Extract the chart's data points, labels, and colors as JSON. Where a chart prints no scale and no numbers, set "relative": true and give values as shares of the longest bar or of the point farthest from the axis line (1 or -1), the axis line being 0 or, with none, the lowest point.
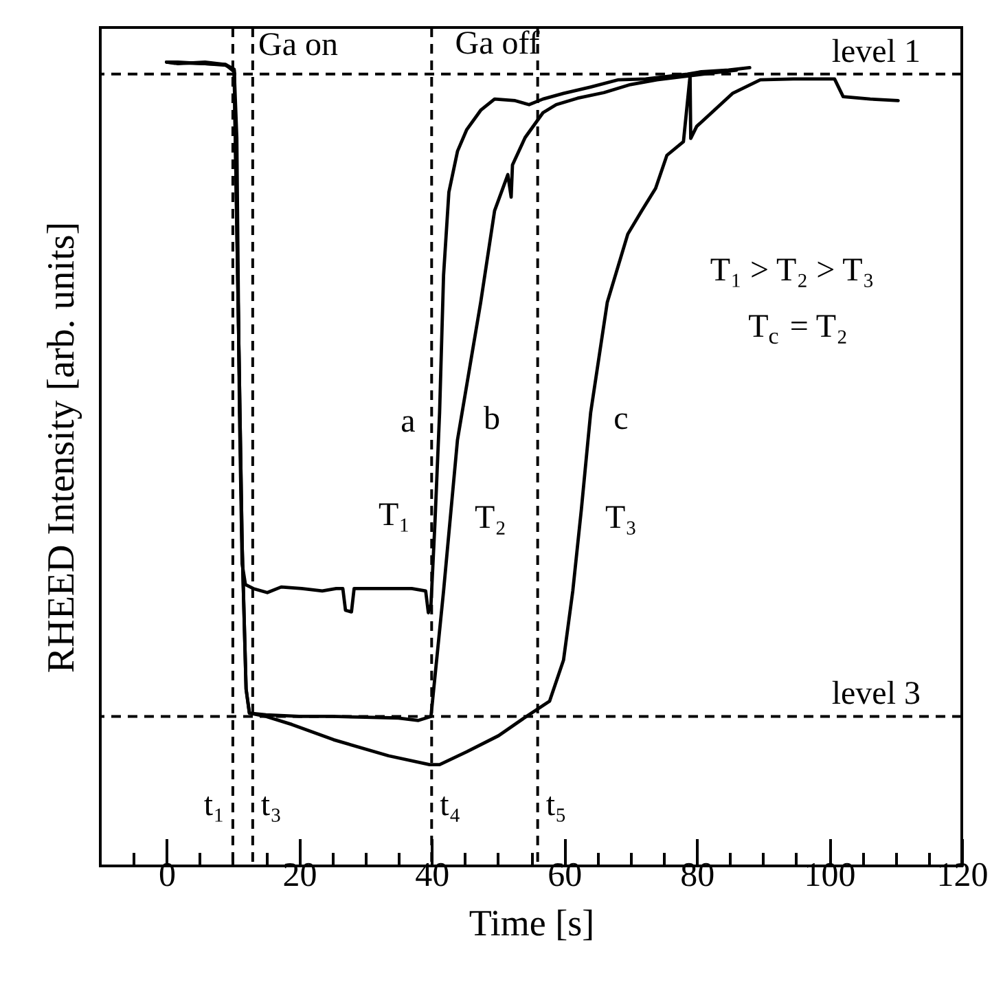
{
  "chart_data": {
    "type": "line",
    "relative": true,
    "xlabel": "Time [s]",
    "ylabel": "RHEED Intensity [arb. units]",
    "xlim": [
      -10,
      120
    ],
    "xticks": [
      {
        "value": -5,
        "label": null
      },
      0,
      {
        "value": 5,
        "label": null
      },
      {
        "value": 10,
        "label": null
      },
      {
        "value": 15,
        "label": null
      },
      20,
      {
        "value": 25,
        "label": null
      },
      {
        "value": 30,
        "label": null
      },
      {
        "value": 35,
        "label": null
      },
      40,
      {
        "value": 45,
        "label": null
      },
      {
        "value": 50,
        "label": null
      },
      {
        "value": 55,
        "label": null
      },
      60,
      {
        "value": 65,
        "label": null
      },
      {
        "value": 70,
        "label": null
      },
      {
        "value": 75,
        "label": null
      },
      80,
      {
        "value": 85,
        "label": null
      },
      {
        "value": 90,
        "label": null
      },
      {
        "value": 95,
        "label": null
      },
      100,
      {
        "value": 105,
        "label": null
      },
      {
        "value": 110,
        "label": null
      },
      {
        "value": 115,
        "label": null
      },
      120
    ],
    "line_style": "solid",
    "series": [
      {
        "color": "#000000",
        "x": [
          0,
          1.7,
          5.8,
          8.9,
          10.2,
          10.6,
          11.0,
          11.4,
          11.9,
          13.1,
          15.2,
          17.3,
          20.4,
          23.5,
          25.6,
          26.6,
          27.0,
          27.9,
          28.3,
          30.8,
          37.0,
          39.1,
          39.5,
          39.9,
          40.5,
          41.2,
          41.8,
          42.6,
          43.9,
          45.3,
          47.4,
          49.5,
          52.6,
          54.7,
          56.8,
          59.9,
          64.0,
          68.2,
          72.3,
          76.5,
          78.6,
          80.7,
          84.8,
          88.0
        ],
        "values": [
          1.0,
          1.0,
          0.998,
          0.997,
          0.991,
          0.906,
          0.564,
          0.376,
          0.35,
          0.345,
          0.34,
          0.347,
          0.345,
          0.342,
          0.345,
          0.345,
          0.318,
          0.316,
          0.345,
          0.345,
          0.345,
          0.342,
          0.315,
          0.325,
          0.427,
          0.564,
          0.735,
          0.838,
          0.889,
          0.916,
          0.94,
          0.954,
          0.952,
          0.947,
          0.954,
          0.961,
          0.969,
          0.978,
          0.979,
          0.983,
          0.985,
          0.988,
          0.99,
          0.993
        ]
      },
      {
        "color": "#000000",
        "x": [
          0,
          1.7,
          5.8,
          8.9,
          10.2,
          10.8,
          11.4,
          12.0,
          12.5,
          15,
          20,
          25,
          30,
          35,
          38,
          39.9,
          41.8,
          43.9,
          47.4,
          49.5,
          51.5,
          52.0,
          52.2,
          54.1,
          56.8,
          58.8,
          62,
          66,
          70,
          74,
          78,
          82,
          86
        ],
        "values": [
          1.0,
          0.998,
          1.0,
          0.997,
          0.988,
          0.7,
          0.4,
          0.22,
          0.19,
          0.188,
          0.186,
          0.186,
          0.185,
          0.184,
          0.181,
          0.186,
          0.342,
          0.53,
          0.701,
          0.815,
          0.86,
          0.832,
          0.872,
          0.906,
          0.937,
          0.947,
          0.955,
          0.962,
          0.972,
          0.978,
          0.982,
          0.986,
          0.99
        ]
      },
      {
        "color": "#000000",
        "x": [
          0,
          1.7,
          5.8,
          8.9,
          10.2,
          10.8,
          11.4,
          12.0,
          12.5,
          15,
          18.9,
          25.2,
          33.5,
          39.7,
          41.2,
          45.3,
          50.1,
          54.3,
          57.8,
          59.9,
          61.3,
          62.6,
          63.6,
          64.0,
          66.5,
          69.6,
          71.7,
          73.8,
          75.5,
          78.0,
          79.0,
          79.1,
          80.0,
          85.4,
          89.6,
          94.6,
          100.8,
          102.1,
          106.2,
          110.4
        ],
        "values": [
          1.0,
          0.999,
          0.998,
          0.996,
          0.99,
          0.7,
          0.4,
          0.22,
          0.19,
          0.186,
          0.176,
          0.157,
          0.137,
          0.126,
          0.126,
          0.142,
          0.162,
          0.186,
          0.205,
          0.256,
          0.342,
          0.444,
          0.53,
          0.564,
          0.701,
          0.786,
          0.815,
          0.843,
          0.884,
          0.901,
          0.983,
          0.905,
          0.92,
          0.961,
          0.978,
          0.979,
          0.979,
          0.957,
          0.954,
          0.952
        ]
      }
    ],
    "ref_lines": [
      {
        "axis": "y",
        "value": 0.985,
        "label": "level 1",
        "line_style": "dashed"
      },
      {
        "axis": "y",
        "value": 0.186,
        "label": "level 3",
        "line_style": "dashed"
      },
      {
        "axis": "x",
        "value": 10,
        "label": "t₁",
        "line_style": "dashed"
      },
      {
        "axis": "x",
        "value": 13,
        "label": "t₃",
        "line_style": "dashed"
      },
      {
        "axis": "x",
        "value": 40,
        "label": "t₄",
        "line_style": "dashed"
      },
      {
        "axis": "x",
        "value": 56,
        "label": "t₅",
        "line_style": "dashed"
      }
    ],
    "annotations": [
      "Ga on",
      "Ga off",
      "a",
      "b",
      "c",
      "T₁",
      "T₂",
      "T₃",
      "T₁ > T₂ > T₃",
      "T$_{c}$ = T₂"
    ]
  }
}
